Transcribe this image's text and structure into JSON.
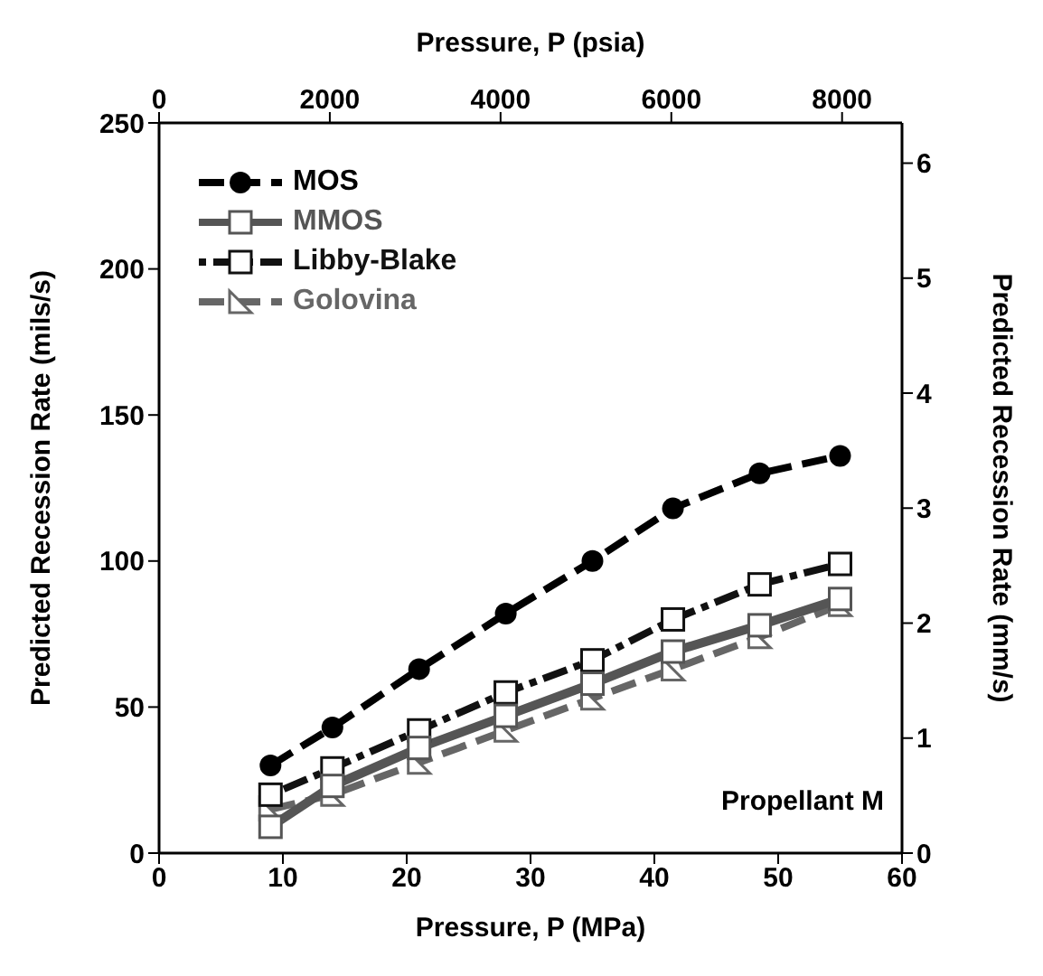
{
  "chart_data": {
    "type": "line",
    "xlabel": "Pressure, P (MPa)",
    "x2label": "Pressure, P (psia)",
    "ylabel": "Predicted Recession Rate (mils/s)",
    "y2label": "Predicted Recession Rate (mm/s)",
    "x": [
      9,
      14,
      21,
      28,
      35,
      41.5,
      48.5,
      55
    ],
    "series": [
      {
        "name": "MOS",
        "color": "#000000",
        "marker": "circle",
        "line_style": "dashed",
        "values": [
          30,
          43,
          63,
          82,
          100,
          118,
          130,
          136
        ]
      },
      {
        "name": "MMOS",
        "color": "#555555",
        "marker": "square",
        "line_style": "solid",
        "values": [
          9,
          23,
          36,
          47,
          58,
          69,
          78,
          87
        ]
      },
      {
        "name": "Libby-Blake",
        "color": "#111111",
        "marker": "square",
        "line_style": "dotted",
        "values": [
          20,
          29,
          42,
          55,
          66,
          80,
          92,
          99
        ]
      },
      {
        "name": "Golovina",
        "color": "#666666",
        "marker": "triangle",
        "line_style": "dashed",
        "values": [
          15,
          20,
          31,
          42,
          53,
          63,
          74,
          85
        ]
      }
    ],
    "xlim": [
      0,
      60
    ],
    "xticks": [
      0,
      10,
      20,
      30,
      40,
      50,
      60
    ],
    "x2lim": [
      0,
      8702
    ],
    "x2ticks": [
      0,
      2000,
      4000,
      6000,
      8000
    ],
    "ylim": [
      0,
      250
    ],
    "yticks": [
      0,
      50,
      100,
      150,
      200,
      250
    ],
    "y2lim": [
      0,
      6.35
    ],
    "y2ticks": [
      0,
      1,
      2,
      3,
      4,
      5,
      6
    ],
    "grid": false,
    "legend": "top left",
    "annotations": [
      "Propellant M"
    ]
  }
}
